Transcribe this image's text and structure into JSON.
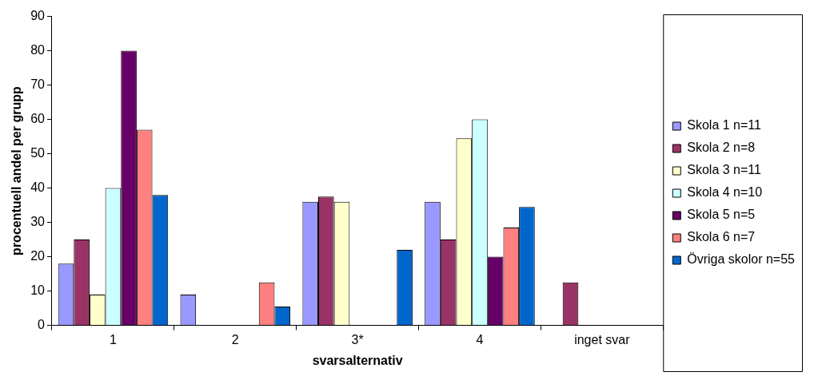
{
  "chart_data": {
    "type": "bar",
    "xlabel": "svarsalternativ",
    "ylabel": "procentuell andel per grupp",
    "categories": [
      "1",
      "2",
      "3*",
      "4",
      "inget svar"
    ],
    "series": [
      {
        "name": "Skola 1 n=11",
        "color": "#9999ff",
        "values": [
          18,
          9,
          36,
          36,
          0
        ]
      },
      {
        "name": "Skola 2 n=8",
        "color": "#993366",
        "values": [
          25,
          0,
          37.5,
          25,
          12.5
        ]
      },
      {
        "name": "Skola 3 n=11",
        "color": "#ffffcc",
        "values": [
          9,
          0,
          36,
          54.5,
          0
        ]
      },
      {
        "name": "Skola 4 n=10",
        "color": "#ccffff",
        "values": [
          40,
          0,
          0,
          60,
          0
        ]
      },
      {
        "name": "Skola 5 n=5",
        "color": "#660066",
        "values": [
          80,
          0,
          0,
          20,
          0
        ]
      },
      {
        "name": "Skola 6 n=7",
        "color": "#ff8080",
        "values": [
          57,
          12.5,
          0,
          28.5,
          0
        ]
      },
      {
        "name": "Övriga skolor n=55",
        "color": "#0066cc",
        "values": [
          38,
          5.5,
          22,
          34.5,
          0
        ]
      }
    ],
    "ylim": [
      0,
      90
    ],
    "yticks": [
      0,
      10,
      20,
      30,
      40,
      50,
      60,
      70,
      80,
      90
    ],
    "grid": false,
    "legend": "right"
  }
}
